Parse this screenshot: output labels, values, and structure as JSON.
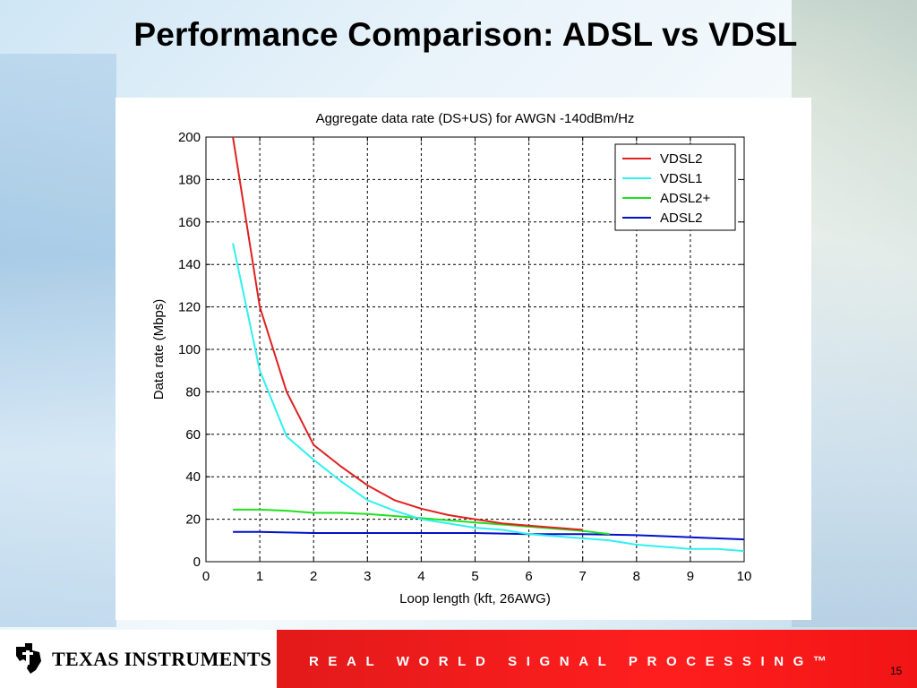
{
  "slide": {
    "title": "Performance Comparison: ADSL vs VDSL",
    "company": "TEXAS INSTRUMENTS",
    "tagline": "REAL WORLD SIGNAL PROCESSING™",
    "page_number": "15"
  },
  "chart_data": {
    "type": "line",
    "title": "Aggregate data rate (DS+US) for AWGN -140dBm/Hz",
    "xlabel": "Loop length (kft, 26AWG)",
    "ylabel": "Data rate (Mbps)",
    "xlim": [
      0,
      10
    ],
    "ylim": [
      0,
      200
    ],
    "xticks": [
      0,
      1,
      2,
      3,
      4,
      5,
      6,
      7,
      8,
      9,
      10
    ],
    "yticks": [
      0,
      20,
      40,
      60,
      80,
      100,
      120,
      140,
      160,
      180,
      200
    ],
    "grid": true,
    "legend_position": "top-right",
    "series": [
      {
        "name": "VDSL2",
        "color": "#e02020",
        "x": [
          0.5,
          1,
          1.5,
          2,
          2.5,
          3,
          3.5,
          4,
          4.5,
          5,
          5.5,
          6,
          6.5,
          7
        ],
        "y": [
          200,
          120,
          80,
          55,
          45,
          36,
          29,
          25,
          22,
          20,
          18,
          17,
          16,
          15
        ]
      },
      {
        "name": "VDSL1",
        "color": "#30f0f0",
        "x": [
          0.5,
          1,
          1.5,
          2,
          2.5,
          3,
          3.5,
          4,
          4.5,
          5,
          5.5,
          6,
          6.5,
          7,
          7.5,
          8,
          8.5,
          9,
          9.5,
          10
        ],
        "y": [
          150,
          90,
          59,
          48,
          38,
          29,
          24,
          20,
          18,
          16,
          15,
          13,
          12,
          11,
          10,
          8,
          7,
          6,
          6,
          5
        ]
      },
      {
        "name": "ADSL2+",
        "color": "#20e020",
        "x": [
          0.5,
          1,
          1.5,
          2,
          2.5,
          3,
          3.5,
          4,
          4.5,
          5,
          5.5,
          6,
          6.5,
          7,
          7.5
        ],
        "y": [
          24.5,
          24.5,
          24,
          23,
          23,
          22.5,
          21.5,
          20.5,
          19.5,
          18.5,
          17.5,
          16.5,
          15.5,
          14.5,
          13
        ]
      },
      {
        "name": "ADSL2",
        "color": "#0010c8",
        "x": [
          0.5,
          1,
          2,
          3,
          4,
          5,
          6,
          7,
          8,
          9,
          10
        ],
        "y": [
          14,
          14,
          13.5,
          13.5,
          13.5,
          13.5,
          13,
          13,
          12.5,
          11.5,
          10.5
        ]
      }
    ]
  }
}
